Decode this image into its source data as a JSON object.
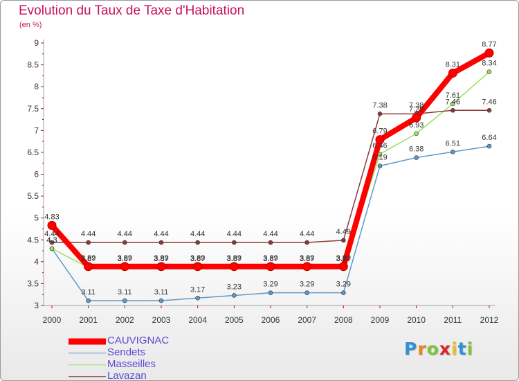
{
  "title": "Evolution du Taux de Taxe d'Habitation",
  "unit": "(en %)",
  "logo": {
    "letters": [
      "P",
      "r",
      "o",
      "x",
      "i",
      "t",
      "i"
    ],
    "colors": [
      "#2f8fd8",
      "#e8841a",
      "#7cc43a",
      "#d8262b",
      "#e8c21a",
      "#2f8fd8",
      "#7cc43a"
    ]
  },
  "chart_data": {
    "type": "line",
    "x": [
      2000,
      2001,
      2002,
      2003,
      2004,
      2005,
      2006,
      2007,
      2008,
      2009,
      2010,
      2011,
      2012
    ],
    "ylim": [
      3,
      9
    ],
    "yticks": [
      "3",
      "3.5",
      "4",
      "4.5",
      "5",
      "5.5",
      "6",
      "6.5",
      "7",
      "7.5",
      "8",
      "8.5",
      "9"
    ],
    "grid": false,
    "legend_position": "bottom-left",
    "series": [
      {
        "name": "CAUVIGNAC",
        "color": "#ff0000",
        "values": [
          4.83,
          3.89,
          3.89,
          3.89,
          3.89,
          3.89,
          3.89,
          3.89,
          3.89,
          6.79,
          7.29,
          8.31,
          8.77
        ],
        "labels": [
          "4.83",
          "3.89",
          "3.89",
          "3.89",
          "3.89",
          "3.89",
          "3.89",
          "3.89",
          "3.89",
          "6.79",
          "7.29",
          "8.31",
          "8.77"
        ]
      },
      {
        "name": "Sendets",
        "color": "#5f98c8",
        "values": [
          4.3,
          3.11,
          3.11,
          3.11,
          3.17,
          3.23,
          3.29,
          3.29,
          3.29,
          6.19,
          6.38,
          6.51,
          6.64
        ],
        "labels": [
          "4.3",
          "3.11",
          "3.11",
          "3.11",
          "3.17",
          "3.23",
          "3.29",
          "3.29",
          "3.29",
          "6.19",
          "6.38",
          "6.51",
          "6.64"
        ]
      },
      {
        "name": "Masseilles",
        "color": "#9be060",
        "values": [
          4.3,
          3.87,
          3.87,
          3.87,
          3.87,
          3.87,
          3.87,
          3.87,
          3.87,
          6.46,
          6.93,
          7.61,
          8.34
        ],
        "labels": [
          "4.3",
          "3.87",
          "3.87",
          "3.87",
          "3.87",
          "3.87",
          "3.87",
          "3.87",
          "3.87",
          "6.46",
          "6.93",
          "7.61",
          "8.34"
        ]
      },
      {
        "name": "Lavazan",
        "color": "#8b3a3a",
        "values": [
          4.44,
          4.44,
          4.44,
          4.44,
          4.44,
          4.44,
          4.44,
          4.44,
          4.49,
          7.38,
          7.38,
          7.46,
          7.46
        ],
        "labels": [
          "4.44",
          "4.44",
          "4.44",
          "4.44",
          "4.44",
          "4.44",
          "4.44",
          "4.44",
          "4.49",
          "7.38",
          "7.38",
          "7.46",
          "7.46"
        ]
      }
    ]
  }
}
